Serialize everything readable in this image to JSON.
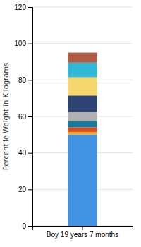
{
  "chart_data": {
    "type": "bar",
    "stacked": true,
    "grid": true,
    "categories": [
      "Boy 19 years 7 months"
    ],
    "series": [
      {
        "color": "#4393e4",
        "values": [
          50.0
        ]
      },
      {
        "color": "#f5a623",
        "values": [
          1.5
        ]
      },
      {
        "color": "#d94e1f",
        "values": [
          2.5
        ]
      },
      {
        "color": "#1a7a9e",
        "values": [
          3.5
        ]
      },
      {
        "color": "#b0b0b0",
        "values": [
          5.0
        ]
      },
      {
        "color": "#2d4373",
        "values": [
          9.0
        ]
      },
      {
        "color": "#f5d76e",
        "values": [
          10.0
        ]
      },
      {
        "color": "#30b8d8",
        "values": [
          8.0
        ]
      },
      {
        "color": "#b05c44",
        "values": [
          5.5
        ]
      }
    ],
    "ylabel": "Percentile Weight in Kilograms",
    "ylim": [
      0,
      120
    ],
    "yticks": [
      0,
      20,
      40,
      60,
      80,
      100,
      120
    ]
  }
}
